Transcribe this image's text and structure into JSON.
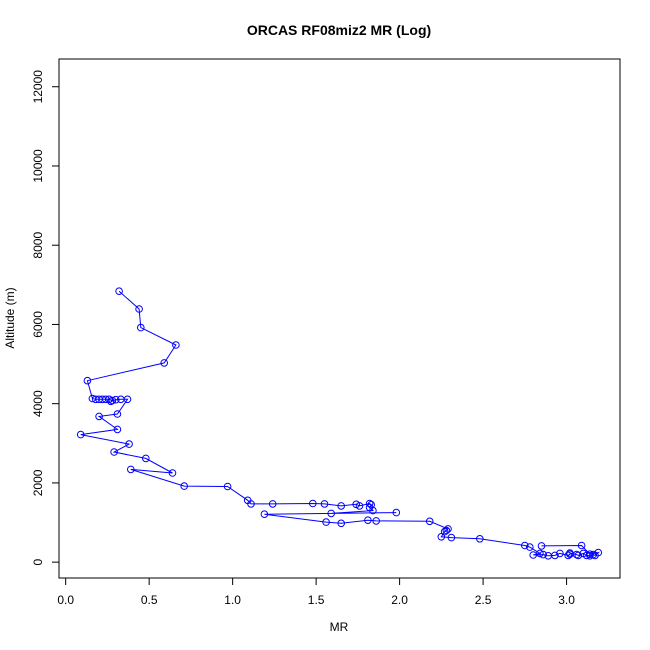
{
  "chart_data": {
    "type": "line",
    "title": "ORCAS RF08miz2 MR (Log)",
    "xlabel": "MR",
    "ylabel": "Altitude (m)",
    "xlim": [
      -0.04,
      3.32
    ],
    "ylim": [
      -400,
      12700
    ],
    "x_ticks": [
      0.0,
      0.5,
      1.0,
      1.5,
      2.0,
      2.5,
      3.0
    ],
    "x_tick_labels": [
      "0.0",
      "0.5",
      "1.0",
      "1.5",
      "2.0",
      "2.5",
      "3.0"
    ],
    "y_ticks": [
      0,
      2000,
      4000,
      6000,
      8000,
      10000,
      12000
    ],
    "y_tick_labels": [
      "0",
      "2000",
      "4000",
      "6000",
      "8000",
      "10000",
      "12000"
    ],
    "grid": false,
    "legend": "none",
    "series": [
      {
        "color": "#0000ff",
        "marker": "open-circle",
        "points": [
          [
            0.32,
            6840
          ],
          [
            0.44,
            6390
          ],
          [
            0.45,
            5920
          ],
          [
            0.66,
            5480
          ],
          [
            0.59,
            5030
          ],
          [
            0.13,
            4580
          ],
          [
            0.16,
            4130
          ],
          [
            0.18,
            4110
          ],
          [
            0.2,
            4110
          ],
          [
            0.22,
            4110
          ],
          [
            0.24,
            4110
          ],
          [
            0.26,
            4110
          ],
          [
            0.28,
            4080
          ],
          [
            0.27,
            4060
          ],
          [
            0.3,
            4100
          ],
          [
            0.33,
            4110
          ],
          [
            0.37,
            4110
          ],
          [
            0.31,
            3740
          ],
          [
            0.2,
            3680
          ],
          [
            0.31,
            3350
          ],
          [
            0.09,
            3220
          ],
          [
            0.38,
            2980
          ],
          [
            0.29,
            2780
          ],
          [
            0.48,
            2620
          ],
          [
            0.64,
            2250
          ],
          [
            0.39,
            2340
          ],
          [
            0.71,
            1920
          ],
          [
            0.97,
            1910
          ],
          [
            1.09,
            1560
          ],
          [
            1.11,
            1470
          ],
          [
            1.24,
            1470
          ],
          [
            1.48,
            1480
          ],
          [
            1.55,
            1470
          ],
          [
            1.65,
            1420
          ],
          [
            1.74,
            1460
          ],
          [
            1.76,
            1420
          ],
          [
            1.82,
            1480
          ],
          [
            1.83,
            1450
          ],
          [
            1.82,
            1380
          ],
          [
            1.84,
            1300
          ],
          [
            1.59,
            1230
          ],
          [
            1.98,
            1250
          ],
          [
            1.19,
            1210
          ],
          [
            1.56,
            1010
          ],
          [
            1.65,
            980
          ],
          [
            1.81,
            1060
          ],
          [
            1.86,
            1040
          ],
          [
            2.18,
            1030
          ],
          [
            2.29,
            840
          ],
          [
            2.28,
            800
          ],
          [
            2.27,
            770
          ],
          [
            2.25,
            640
          ],
          [
            2.31,
            620
          ],
          [
            2.48,
            590
          ],
          [
            2.75,
            420
          ],
          [
            2.78,
            380
          ],
          [
            2.84,
            220
          ],
          [
            2.8,
            180
          ],
          [
            2.86,
            190
          ],
          [
            2.89,
            160
          ],
          [
            2.93,
            170
          ],
          [
            2.96,
            220
          ],
          [
            3.01,
            170
          ],
          [
            3.02,
            200
          ],
          [
            3.02,
            230
          ],
          [
            3.06,
            190
          ],
          [
            3.07,
            170
          ],
          [
            3.1,
            220
          ],
          [
            3.12,
            170
          ],
          [
            3.14,
            160
          ],
          [
            3.16,
            190
          ],
          [
            3.17,
            170
          ],
          [
            3.19,
            240
          ],
          [
            3.14,
            200
          ],
          [
            3.09,
            420
          ],
          [
            2.85,
            410
          ]
        ]
      }
    ]
  }
}
